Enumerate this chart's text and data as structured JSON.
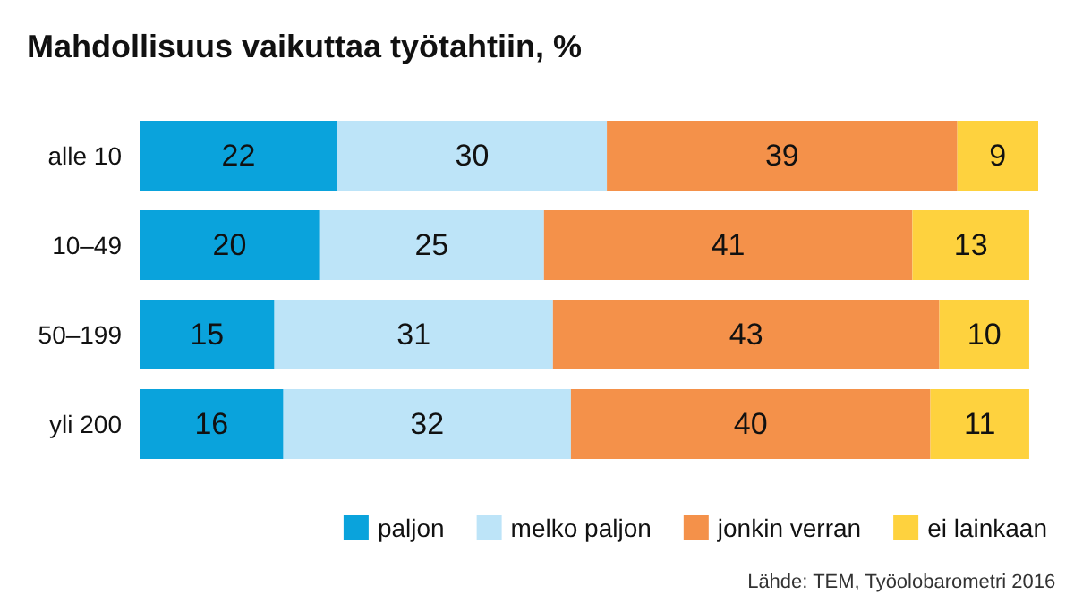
{
  "chart_data": {
    "type": "bar",
    "title": "Mahdollisuus vaikuttaa työtahtiin, %",
    "orientation": "horizontal",
    "stacked": true,
    "data_labels": true,
    "grid": false,
    "legend": "bottom right",
    "categories": [
      "alle 10",
      "10–49",
      "50–199",
      "yli 200"
    ],
    "series": [
      {
        "name": "paljon",
        "color": "#0aa3dc",
        "values": [
          22,
          20,
          15,
          16
        ]
      },
      {
        "name": "melko paljon",
        "color": "#bde4f8",
        "values": [
          30,
          25,
          31,
          32
        ]
      },
      {
        "name": "jonkin verran",
        "color": "#f4914a",
        "values": [
          39,
          41,
          43,
          40
        ]
      },
      {
        "name": "ei lainkaan",
        "color": "#fed23e",
        "values": [
          9,
          13,
          10,
          11
        ]
      }
    ],
    "annotations": [
      "Lähde: TEM, Työolobarometri 2016"
    ]
  }
}
